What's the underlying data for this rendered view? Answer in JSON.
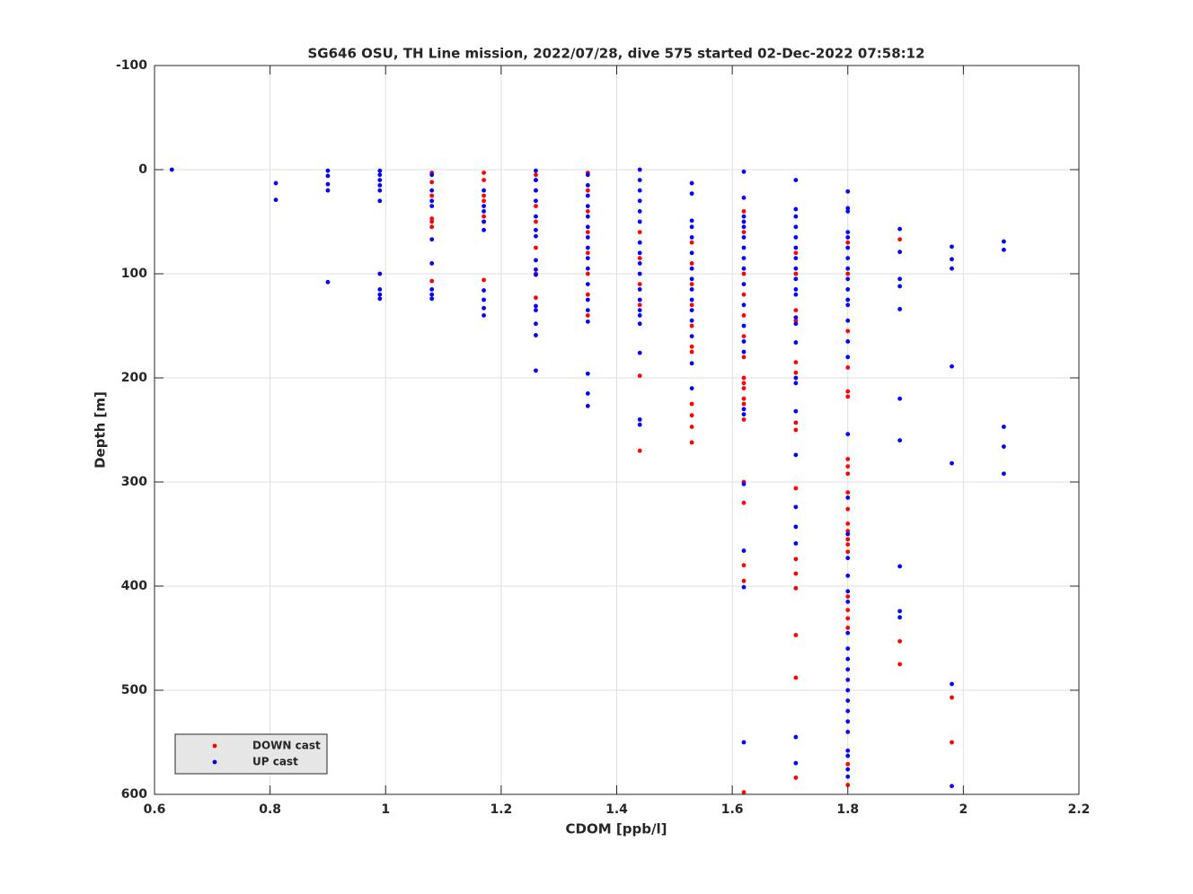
{
  "chart_data": {
    "type": "scatter",
    "title": "SG646 OSU, TH Line mission, 2022/07/28, dive 575 started 02-Dec-2022 07:58:12",
    "x_label": "CDOM [ppb/l]",
    "y_label": "Depth [m]",
    "xlim": [
      0.6,
      2.2
    ],
    "xticks": [
      0.6,
      0.8,
      1,
      1.2,
      1.4,
      1.6,
      1.8,
      2,
      2.2
    ],
    "ylim": [
      -100,
      600
    ],
    "yticks": [
      -100,
      0,
      100,
      200,
      300,
      400,
      500,
      600
    ],
    "y_direction": "reverse",
    "grid": true,
    "legend": "lower-left",
    "series": [
      {
        "name": "DOWN cast",
        "color": "#ff0000",
        "x": [
          1.08,
          1.08,
          1.08,
          1.08,
          1.08,
          1.08,
          1.08,
          1.17,
          1.17,
          1.17,
          1.17,
          1.17,
          1.17,
          1.17,
          1.26,
          1.26,
          1.26,
          1.26,
          1.26,
          1.26,
          1.26,
          1.26,
          1.35,
          1.35,
          1.35,
          1.35,
          1.35,
          1.35,
          1.35,
          1.35,
          1.44,
          1.44,
          1.44,
          1.44,
          1.44,
          1.44,
          1.53,
          1.53,
          1.53,
          1.53,
          1.53,
          1.53,
          1.53,
          1.53,
          1.53,
          1.53,
          1.53,
          1.62,
          1.62,
          1.62,
          1.62,
          1.62,
          1.62,
          1.62,
          1.62,
          1.62,
          1.62,
          1.62,
          1.62,
          1.62,
          1.62,
          1.62,
          1.62,
          1.62,
          1.62,
          1.71,
          1.71,
          1.71,
          1.71,
          1.71,
          1.71,
          1.71,
          1.71,
          1.71,
          1.71,
          1.71,
          1.71,
          1.71,
          1.71,
          1.71,
          1.8,
          1.8,
          1.8,
          1.8,
          1.8,
          1.8,
          1.8,
          1.8,
          1.8,
          1.8,
          1.8,
          1.8,
          1.8,
          1.8,
          1.8,
          1.8,
          1.8,
          1.8,
          1.8,
          1.8,
          1.8,
          1.8,
          1.89,
          1.89,
          1.89,
          1.98,
          1.98
        ],
        "values": [
          3,
          12,
          25,
          47,
          50,
          55,
          107,
          3,
          10,
          25,
          30,
          45,
          50,
          106,
          5,
          10,
          20,
          35,
          50,
          75,
          100,
          123,
          3,
          20,
          40,
          60,
          80,
          100,
          120,
          140,
          60,
          85,
          110,
          130,
          198,
          270,
          70,
          90,
          110,
          130,
          150,
          170,
          175,
          225,
          236,
          247,
          262,
          40,
          60,
          100,
          120,
          140,
          160,
          180,
          200,
          205,
          210,
          220,
          225,
          240,
          300,
          320,
          380,
          395,
          598,
          80,
          100,
          135,
          145,
          185,
          195,
          243,
          250,
          306,
          374,
          388,
          402,
          447,
          488,
          584,
          70,
          100,
          155,
          190,
          213,
          218,
          278,
          285,
          292,
          310,
          326,
          340,
          347,
          355,
          360,
          367,
          410,
          423,
          431,
          440,
          571,
          591,
          67,
          453,
          475,
          507,
          550
        ]
      },
      {
        "name": "UP cast",
        "color": "#0000ff",
        "x": [
          0.63,
          0.81,
          0.81,
          0.9,
          0.9,
          0.9,
          0.9,
          0.9,
          0.99,
          0.99,
          0.99,
          0.99,
          0.99,
          0.99,
          0.99,
          0.99,
          0.99,
          0.99,
          1.08,
          1.08,
          1.08,
          1.08,
          1.08,
          1.08,
          1.08,
          1.08,
          1.08,
          1.17,
          1.17,
          1.17,
          1.17,
          1.17,
          1.17,
          1.17,
          1.17,
          1.17,
          1.26,
          1.26,
          1.26,
          1.26,
          1.26,
          1.26,
          1.26,
          1.26,
          1.26,
          1.26,
          1.26,
          1.26,
          1.26,
          1.26,
          1.26,
          1.35,
          1.35,
          1.35,
          1.35,
          1.35,
          1.35,
          1.35,
          1.35,
          1.35,
          1.35,
          1.35,
          1.35,
          1.35,
          1.35,
          1.35,
          1.35,
          1.35,
          1.44,
          1.44,
          1.44,
          1.44,
          1.44,
          1.44,
          1.44,
          1.44,
          1.44,
          1.44,
          1.44,
          1.44,
          1.44,
          1.44,
          1.44,
          1.44,
          1.44,
          1.44,
          1.53,
          1.53,
          1.53,
          1.53,
          1.53,
          1.53,
          1.53,
          1.53,
          1.53,
          1.53,
          1.53,
          1.53,
          1.53,
          1.53,
          1.53,
          1.62,
          1.62,
          1.62,
          1.62,
          1.62,
          1.62,
          1.62,
          1.62,
          1.62,
          1.62,
          1.62,
          1.62,
          1.62,
          1.62,
          1.62,
          1.62,
          1.62,
          1.62,
          1.62,
          1.62,
          1.71,
          1.71,
          1.71,
          1.71,
          1.71,
          1.71,
          1.71,
          1.71,
          1.71,
          1.71,
          1.71,
          1.71,
          1.71,
          1.71,
          1.71,
          1.71,
          1.71,
          1.71,
          1.71,
          1.71,
          1.71,
          1.71,
          1.71,
          1.8,
          1.8,
          1.8,
          1.8,
          1.8,
          1.8,
          1.8,
          1.8,
          1.8,
          1.8,
          1.8,
          1.8,
          1.8,
          1.8,
          1.8,
          1.8,
          1.8,
          1.8,
          1.8,
          1.8,
          1.8,
          1.8,
          1.8,
          1.8,
          1.8,
          1.8,
          1.8,
          1.8,
          1.8,
          1.8,
          1.8,
          1.8,
          1.8,
          1.8,
          1.8,
          1.8,
          1.89,
          1.89,
          1.89,
          1.89,
          1.89,
          1.89,
          1.89,
          1.89,
          1.89,
          1.89,
          1.98,
          1.98,
          1.98,
          1.98,
          1.98,
          1.98,
          1.98,
          2.07,
          2.07,
          2.07,
          2.07,
          2.07
        ],
        "values": [
          0,
          13,
          29,
          1,
          6,
          14,
          20,
          108,
          1,
          5,
          10,
          15,
          20,
          30,
          100,
          115,
          120,
          124,
          5,
          20,
          30,
          35,
          67,
          90,
          115,
          120,
          124,
          20,
          35,
          40,
          50,
          58,
          116,
          125,
          133,
          140,
          1,
          10,
          20,
          30,
          45,
          58,
          64,
          87,
          96,
          101,
          131,
          135,
          148,
          159,
          193,
          5,
          15,
          25,
          35,
          45,
          55,
          65,
          75,
          85,
          95,
          110,
          125,
          135,
          146,
          196,
          215,
          227,
          0,
          10,
          20,
          30,
          40,
          50,
          70,
          80,
          90,
          100,
          115,
          125,
          135,
          140,
          148,
          176,
          240,
          245,
          13,
          23,
          49,
          55,
          65,
          80,
          95,
          105,
          115,
          125,
          135,
          145,
          160,
          186,
          210,
          2,
          27,
          45,
          50,
          55,
          65,
          75,
          85,
          95,
          110,
          130,
          150,
          165,
          175,
          230,
          235,
          302,
          366,
          401,
          550,
          10,
          38,
          45,
          55,
          65,
          75,
          85,
          95,
          105,
          115,
          120,
          142,
          148,
          166,
          200,
          205,
          232,
          274,
          324,
          343,
          359,
          545,
          570,
          21,
          37,
          40,
          60,
          65,
          75,
          85,
          95,
          105,
          115,
          125,
          130,
          145,
          165,
          180,
          254,
          315,
          350,
          373,
          390,
          405,
          415,
          445,
          460,
          470,
          480,
          490,
          500,
          510,
          520,
          530,
          540,
          558,
          563,
          576,
          583,
          57,
          79,
          105,
          112,
          134,
          220,
          260,
          381,
          424,
          430,
          74,
          86,
          95,
          189,
          282,
          494,
          592,
          69,
          77,
          247,
          266,
          292
        ]
      }
    ]
  }
}
